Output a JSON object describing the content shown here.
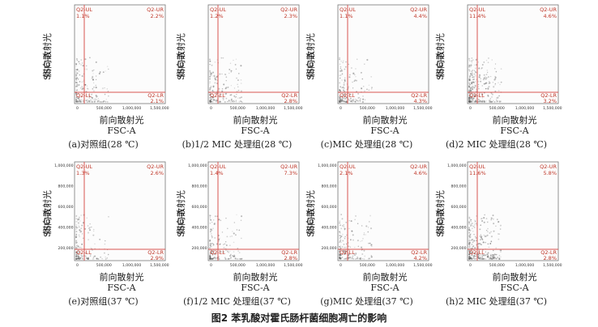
{
  "figure_title": "图2  苯乳酸对霍氏肠杆菌细胞凋亡的影响",
  "chart_data": [
    {
      "type": "scatter",
      "caption": "(a)对照组(28 ℃)",
      "ylabel": "侧向散射光",
      "ylabel2": "SSC-A",
      "xlabel": "前向散射光",
      "xlabel2": "FSC-A",
      "xticks": [
        "0",
        "500,000",
        "1,000,000",
        "1,500,000"
      ],
      "yticks": [],
      "quadrants": {
        "UL": {
          "label": "Q2-UL",
          "value": "1.1%"
        },
        "UR": {
          "label": "Q2-UR",
          "value": "2.2%"
        },
        "LL": {
          "label": "Q2-LL",
          "value": ""
        },
        "LR": {
          "label": "Q2-LR",
          "value": "2.1%"
        }
      }
    },
    {
      "type": "scatter",
      "caption": "(b)1/2 MIC 处理组(28 ℃)",
      "ylabel": "侧向散射光",
      "ylabel2": "SSC-A",
      "xlabel": "前向散射光",
      "xlabel2": "FSC-A",
      "xticks": [
        "0",
        "500,000",
        "1,000,000",
        "1,500,000"
      ],
      "yticks": [],
      "quadrants": {
        "UL": {
          "label": "Q2-UL",
          "value": "1.2%"
        },
        "UR": {
          "label": "Q2-UR",
          "value": "2.3%"
        },
        "LL": {
          "label": "Q2-LL",
          "value": ""
        },
        "LR": {
          "label": "Q2-LR",
          "value": "2.8%"
        }
      }
    },
    {
      "type": "scatter",
      "caption": "(c)MIC 处理组(28 ℃)",
      "ylabel": "侧向散射光",
      "ylabel2": "SSC-A",
      "xlabel": "前向散射光",
      "xlabel2": "FSC-A",
      "xticks": [
        "0",
        "500,000",
        "1,000,000",
        "1,500,000"
      ],
      "yticks": [],
      "quadrants": {
        "UL": {
          "label": "Q2-UL",
          "value": "1.1%"
        },
        "UR": {
          "label": "Q2-UR",
          "value": "4.4%"
        },
        "LL": {
          "label": "Q2-LL",
          "value": ""
        },
        "LR": {
          "label": "Q2-LR",
          "value": "4.3%"
        }
      }
    },
    {
      "type": "scatter",
      "caption": "(d)2 MIC 处理组(28 ℃)",
      "ylabel": "侧向散射光",
      "ylabel2": "SSC-A",
      "xlabel": "前向散射光",
      "xlabel2": "FSC-A",
      "xticks": [
        "0",
        "500,000",
        "1,000,000",
        "1,500,000"
      ],
      "yticks": [],
      "quadrants": {
        "UL": {
          "label": "Q2-UL",
          "value": "11.4%"
        },
        "UR": {
          "label": "Q2-UR",
          "value": "4.6%"
        },
        "LL": {
          "label": "Q2-LL",
          "value": ""
        },
        "LR": {
          "label": "Q2-LR",
          "value": "3.2%"
        }
      }
    },
    {
      "type": "scatter",
      "caption": "(e)对照组(37 ℃)",
      "ylabel": "侧向散射光",
      "ylabel2": "SSC-A",
      "xlabel": "前向散射光",
      "xlabel2": "FSC-A",
      "xticks": [
        "0",
        "500,000",
        "1,000,000",
        "1,500,000"
      ],
      "yticks": [
        "1,000,000",
        "800,000",
        "600,000",
        "400,000",
        "200,000"
      ],
      "quadrants": {
        "UL": {
          "label": "Q2-UL",
          "value": "1.3%"
        },
        "UR": {
          "label": "Q2-UR",
          "value": "2.6%"
        },
        "LL": {
          "label": "Q2-LL",
          "value": ""
        },
        "LR": {
          "label": "Q2-LR",
          "value": "2.9%"
        }
      }
    },
    {
      "type": "scatter",
      "caption": "(f)1/2 MIC 处理组(37 ℃)",
      "ylabel": "侧向散射光",
      "ylabel2": "SSC-A",
      "xlabel": "前向散射光",
      "xlabel2": "FSC-A",
      "xticks": [
        "0",
        "500,000",
        "1,000,000",
        "1,500,000"
      ],
      "yticks": [
        "1,000,000",
        "800,000",
        "600,000",
        "400,000",
        "200,000"
      ],
      "quadrants": {
        "UL": {
          "label": "Q2-UL",
          "value": "1.4%"
        },
        "UR": {
          "label": "Q2-UR",
          "value": "7.3%"
        },
        "LL": {
          "label": "Q2-LL",
          "value": ""
        },
        "LR": {
          "label": "Q2-LR",
          "value": "2.8%"
        }
      }
    },
    {
      "type": "scatter",
      "caption": "(g)MIC 处理组(37 ℃)",
      "ylabel": "侧向散射光",
      "ylabel2": "SSC-A",
      "xlabel": "前向散射光",
      "xlabel2": "FSC-A",
      "xticks": [
        "0",
        "500,000",
        "1,000,000",
        "1,500,000"
      ],
      "yticks": [
        "1,000,000",
        "800,000",
        "600,000",
        "400,000",
        "200,000"
      ],
      "quadrants": {
        "UL": {
          "label": "Q2-UL",
          "value": "2.1%"
        },
        "UR": {
          "label": "Q2-UR",
          "value": "4.6%"
        },
        "LL": {
          "label": "Q2-LL",
          "value": ""
        },
        "LR": {
          "label": "Q2-LR",
          "value": "4.2%"
        }
      }
    },
    {
      "type": "scatter",
      "caption": "(h)2 MIC 处理组(37 ℃)",
      "ylabel": "侧向散射光",
      "ylabel2": "SSC-A",
      "xlabel": "前向散射光",
      "xlabel2": "FSC-A",
      "xticks": [
        "0",
        "500,000",
        "1,000,000",
        "1,500,000"
      ],
      "yticks": [
        "1,000,000",
        "800,000",
        "600,000",
        "400,000",
        "200,000"
      ],
      "quadrants": {
        "UL": {
          "label": "Q2-UL",
          "value": "11.6%"
        },
        "UR": {
          "label": "Q2-UR",
          "value": "5.8%"
        },
        "LL": {
          "label": "Q2-LL",
          "value": ""
        },
        "LR": {
          "label": "Q2-LR",
          "value": "2.8%"
        }
      }
    }
  ]
}
